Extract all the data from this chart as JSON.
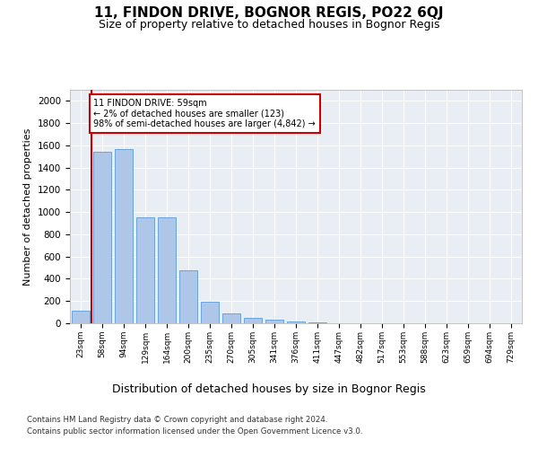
{
  "title": "11, FINDON DRIVE, BOGNOR REGIS, PO22 6QJ",
  "subtitle": "Size of property relative to detached houses in Bognor Regis",
  "xlabel": "Distribution of detached houses by size in Bognor Regis",
  "ylabel": "Number of detached properties",
  "bar_values": [
    110,
    1540,
    1565,
    950,
    950,
    480,
    190,
    90,
    45,
    30,
    15,
    5,
    2,
    1,
    0,
    0,
    0,
    0,
    0,
    0,
    0
  ],
  "categories": [
    "23sqm",
    "58sqm",
    "94sqm",
    "129sqm",
    "164sqm",
    "200sqm",
    "235sqm",
    "270sqm",
    "305sqm",
    "341sqm",
    "376sqm",
    "411sqm",
    "447sqm",
    "482sqm",
    "517sqm",
    "553sqm",
    "588sqm",
    "623sqm",
    "659sqm",
    "694sqm",
    "729sqm"
  ],
  "bar_color": "#aec7e8",
  "bar_edge_color": "#5b9bd5",
  "ylim": [
    0,
    2100
  ],
  "yticks": [
    0,
    200,
    400,
    600,
    800,
    1000,
    1200,
    1400,
    1600,
    1800,
    2000
  ],
  "vline_x": 0.5,
  "vline_color": "#cc0000",
  "annotation_text": "11 FINDON DRIVE: 59sqm\n← 2% of detached houses are smaller (123)\n98% of semi-detached houses are larger (4,842) →",
  "annotation_box_color": "#cc0000",
  "bg_color": "#e8eef4",
  "grid_color": "#ffffff",
  "footer_line1": "Contains HM Land Registry data © Crown copyright and database right 2024.",
  "footer_line2": "Contains public sector information licensed under the Open Government Licence v3.0.",
  "title_fontsize": 11,
  "subtitle_fontsize": 9,
  "ylabel_fontsize": 8,
  "xlabel_fontsize": 9
}
